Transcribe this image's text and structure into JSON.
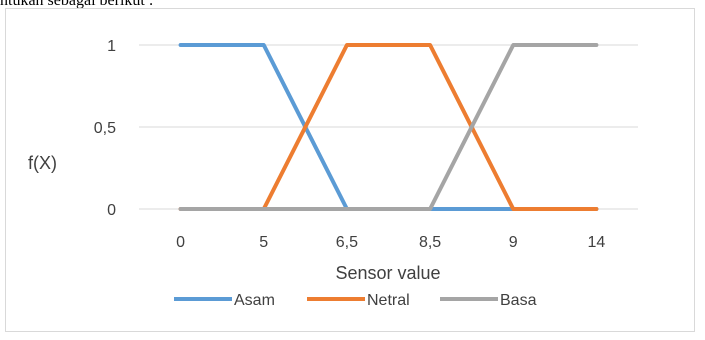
{
  "page": {
    "caption_fragment": "ntukan sebagai berikut :"
  },
  "chart_data": {
    "type": "line",
    "title": "",
    "xlabel": "Sensor value",
    "ylabel": "f(X)",
    "categories": [
      "0",
      "5",
      "6,5",
      "8,5",
      "9",
      "14"
    ],
    "y_ticks": [
      "0",
      "0,5",
      "1"
    ],
    "ylim": [
      0,
      1
    ],
    "grid": "horizontal",
    "legend_position": "bottom",
    "series": [
      {
        "name": "Asam",
        "color": "#5b9bd5",
        "values": [
          1,
          1,
          0,
          0,
          0,
          0
        ]
      },
      {
        "name": "Netral",
        "color": "#ed7d31",
        "values": [
          0,
          0,
          1,
          1,
          0,
          0
        ]
      },
      {
        "name": "Basa",
        "color": "#a5a5a5",
        "values": [
          0,
          0,
          0,
          0,
          1,
          1
        ]
      }
    ]
  }
}
